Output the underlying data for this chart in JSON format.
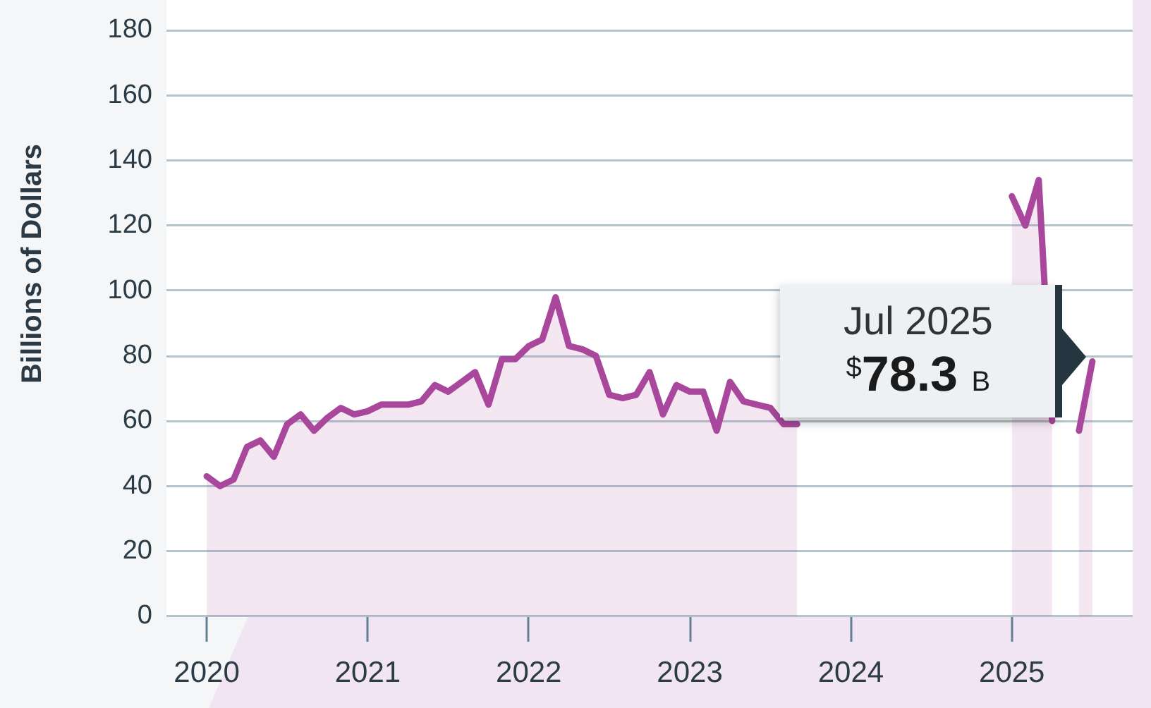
{
  "chart_data": {
    "type": "area",
    "ylabel": "Billions of Dollars",
    "x": [
      "2020-01",
      "2020-02",
      "2020-03",
      "2020-04",
      "2020-05",
      "2020-06",
      "2020-07",
      "2020-08",
      "2020-09",
      "2020-10",
      "2020-11",
      "2020-12",
      "2021-01",
      "2021-02",
      "2021-03",
      "2021-04",
      "2021-05",
      "2021-06",
      "2021-07",
      "2021-08",
      "2021-09",
      "2021-10",
      "2021-11",
      "2021-12",
      "2022-01",
      "2022-02",
      "2022-03",
      "2022-04",
      "2022-05",
      "2022-06",
      "2022-07",
      "2022-08",
      "2022-09",
      "2022-10",
      "2022-11",
      "2022-12",
      "2023-01",
      "2023-02",
      "2023-03",
      "2023-04",
      "2023-05",
      "2023-06",
      "2023-07",
      "2023-08",
      "2023-09",
      "2023-10",
      "2023-11",
      "2023-12",
      "2024-01",
      "2024-02",
      "2024-03",
      "2024-04",
      "2024-05",
      "2024-06",
      "2024-07",
      "2024-08",
      "2024-09",
      "2024-10",
      "2024-11",
      "2024-12",
      "2025-01",
      "2025-02",
      "2025-03",
      "2025-04",
      "2025-05",
      "2025-06",
      "2025-07"
    ],
    "values": [
      43,
      40,
      42,
      52,
      54,
      49,
      59,
      62,
      57,
      61,
      64,
      62,
      63,
      65,
      65,
      65,
      66,
      71,
      69,
      72,
      75,
      65,
      79,
      79,
      83,
      85,
      98,
      83,
      82,
      80,
      68,
      67,
      68,
      75,
      62,
      71,
      69,
      69,
      57,
      72,
      66,
      65,
      64,
      59,
      59,
      null,
      null,
      null,
      null,
      null,
      null,
      null,
      null,
      null,
      null,
      null,
      null,
      null,
      null,
      null,
      129,
      120,
      134,
      60,
      null,
      57,
      78.3
    ],
    "color": "#a8479b",
    "xlim": [
      "2019-10",
      "2025-10"
    ],
    "xticks": [
      "2020",
      "2021",
      "2022",
      "2023",
      "2024",
      "2025"
    ],
    "ylim": [
      0,
      180
    ],
    "yticks": [
      0,
      20,
      40,
      60,
      80,
      100,
      120,
      140,
      160,
      180
    ],
    "grid": "y",
    "annotations": [
      {
        "text": "Jul 2025\n$^{$}$78.3 B",
        "x": "2025-07",
        "y": 78.3
      }
    ]
  }
}
